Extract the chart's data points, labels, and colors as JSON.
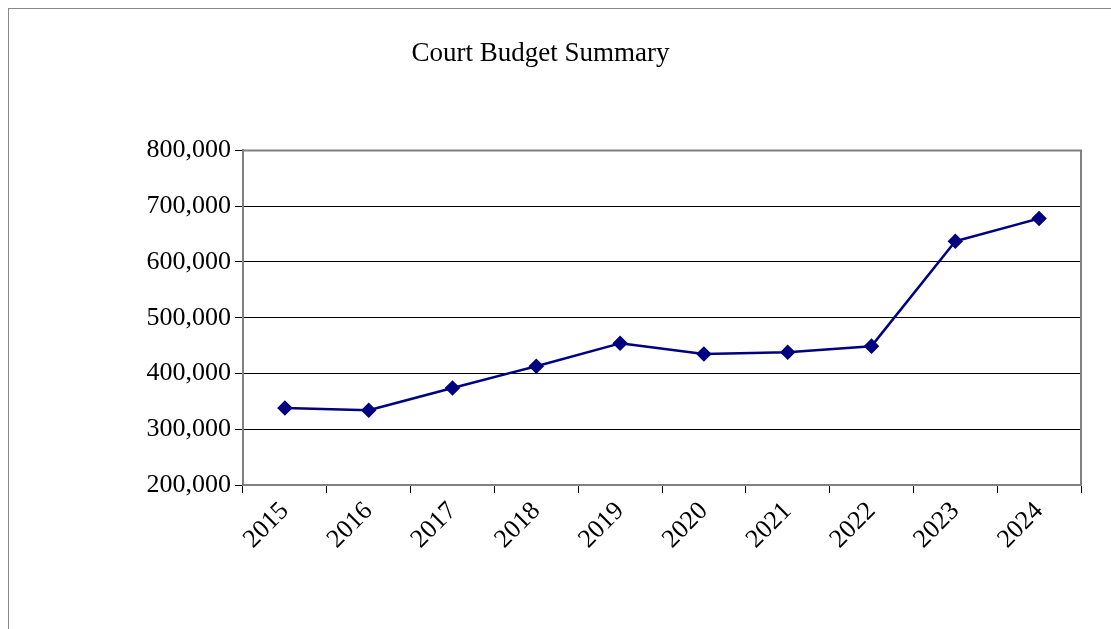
{
  "chart_data": {
    "type": "line",
    "title": "Court Budget Summary",
    "categories": [
      "2015",
      "2016",
      "2017",
      "2018",
      "2019",
      "2020",
      "2021",
      "2022",
      "2023",
      "2024"
    ],
    "series": [
      {
        "color": "#000080",
        "values": [
          338000,
          334000,
          374000,
          413000,
          454000,
          435000,
          438000,
          449000,
          637000,
          678000
        ]
      }
    ],
    "ylim": [
      200000,
      800000
    ],
    "yticks": [
      {
        "value": 200000,
        "label": "200,000"
      },
      {
        "value": 300000,
        "label": "300,000"
      },
      {
        "value": 400000,
        "label": "400,000"
      },
      {
        "value": 500000,
        "label": "500,000"
      },
      {
        "value": 600000,
        "label": "600,000"
      },
      {
        "value": 700000,
        "label": "700,000"
      },
      {
        "value": 800000,
        "label": "800,000"
      }
    ],
    "grid": "y",
    "marker": "diamond"
  }
}
